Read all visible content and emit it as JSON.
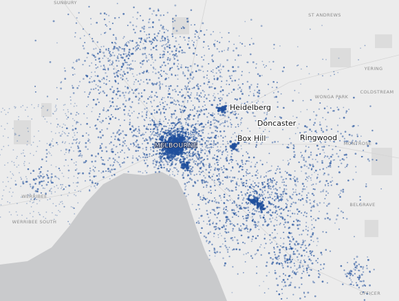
{
  "minor_labels": [
    "SUNBURY",
    "ST ANDREWS",
    "YERING",
    "COLDSTREAM",
    "WONGA PARK",
    "MONTROSE",
    "BELGRAVE",
    "OFFICER",
    "WERRIBEE",
    "WERRIBEE SOUTH"
  ],
  "city_label": "MELBOURNE",
  "suburb_labels": [
    "Heidelberg",
    "Doncaster",
    "Box Hill",
    "Ringwood"
  ]
}
